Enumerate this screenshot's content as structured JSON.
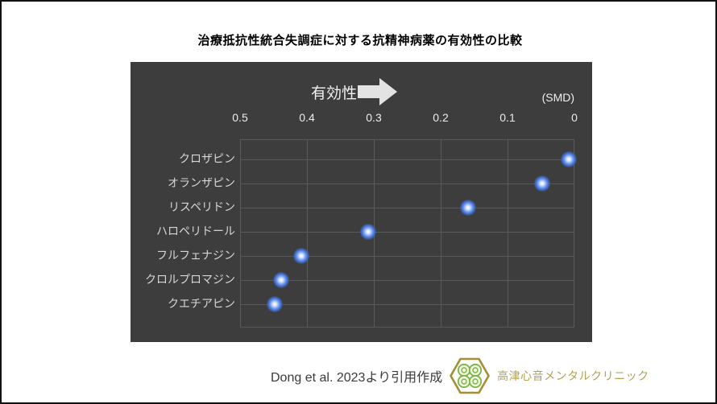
{
  "title": "治療抵抗性統合失調症に対する抗精神病薬の有効性の比較",
  "chart_data": {
    "type": "scatter",
    "title": "治療抵抗性統合失調症に対する抗精神病薬の有効性の比較",
    "direction_label": "有効性",
    "unit_label": "(SMD)",
    "x_axis": {
      "position": "top",
      "reversed": true,
      "min": 0,
      "max": 0.5,
      "tick_values": [
        0.5,
        0.4,
        0.3,
        0.2,
        0.1,
        0
      ],
      "tick_labels": [
        "0.5",
        "0.4",
        "0.3",
        "0.2",
        "0.1",
        "0"
      ]
    },
    "categories": [
      "クロザピン",
      "オランザピン",
      "リスペリドン",
      "ハロペリドール",
      "フルフェナジン",
      "クロルプロマジン",
      "クエチアピン"
    ],
    "values": [
      0.01,
      0.05,
      0.16,
      0.31,
      0.41,
      0.44,
      0.45
    ],
    "grid": true,
    "legend": "none",
    "point_color": "#3f6fd4",
    "plot_background": "#3d3d3d"
  },
  "footer": {
    "source": "Dong et al. 2023より引用作成",
    "clinic_name": "高津心音メンタルクリニック"
  },
  "colors": {
    "panel_background": "#3d3d3d",
    "gridline": "#5a5a5a",
    "axis_text": "#ececec",
    "category_text": "#d6d6d6",
    "point_blue": "#3f6fd4",
    "arrow_fill": "#e3e3e3",
    "clinic_gold": "#b2a254",
    "logo_hexagon": "#a38f35",
    "logo_petal_green": "#7cb342"
  }
}
